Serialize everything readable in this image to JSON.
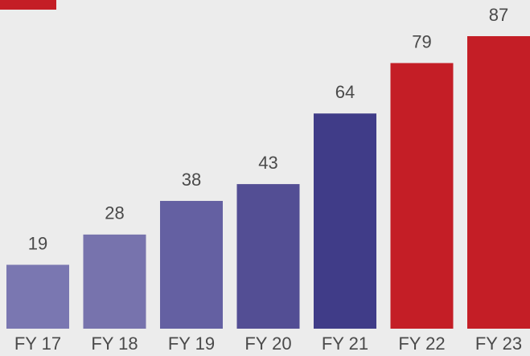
{
  "chart_data": {
    "type": "bar",
    "categories": [
      "FY 17",
      "FY 18",
      "FY 19",
      "FY 20",
      "FY 21",
      "FY 22",
      "FY 23"
    ],
    "values": [
      19,
      28,
      38,
      43,
      64,
      79,
      87
    ],
    "colors": [
      "#7a77b1",
      "#7773ad",
      "#6460a2",
      "#534e94",
      "#403c88",
      "#c41e26",
      "#c41e26"
    ]
  }
}
